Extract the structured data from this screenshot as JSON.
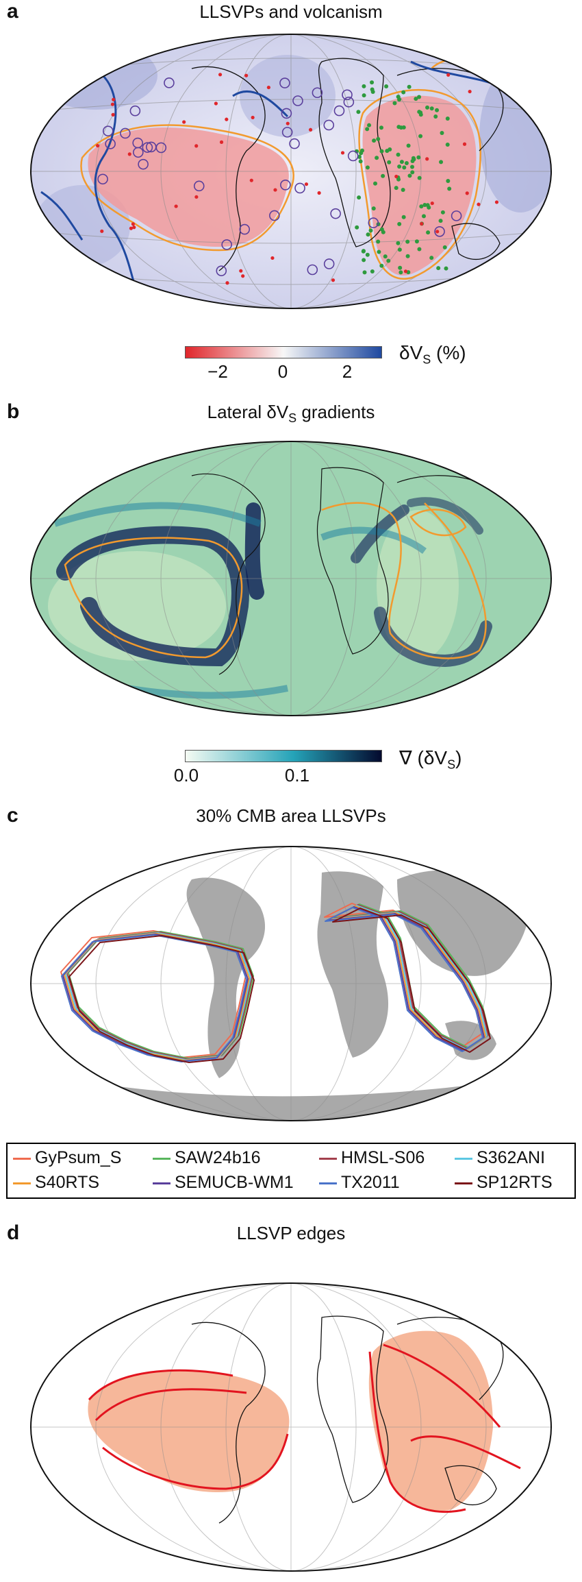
{
  "panels": {
    "a": {
      "letter": "a",
      "title": "LLSVPs and volcanism"
    },
    "b": {
      "letter": "b",
      "title": "Lateral δV",
      "title_sub": "S",
      "title_end": " gradients"
    },
    "c": {
      "letter": "c",
      "title": "30% CMB area LLSVPs"
    },
    "d": {
      "letter": "d",
      "title": "LLSVP edges"
    }
  },
  "colorbar_a": {
    "label": "δV",
    "label_sub": "S",
    "label_unit": " (%)",
    "ticks": [
      "−2",
      "0",
      "2"
    ],
    "colors": {
      "low": "#e0262b",
      "mid": "#f7f7f7",
      "high": "#1f49a0"
    }
  },
  "colorbar_b": {
    "label": "∇ (δV",
    "label_sub": "S",
    "label_end": ")",
    "ticks": [
      "0.0",
      "0.1"
    ],
    "colors": {
      "low": "#f5fbf3",
      "mid": "#25a3b8",
      "high": "#040a2e"
    }
  },
  "legend": {
    "items": [
      {
        "label": "GyPsum_S",
        "color": "#ef6b4f"
      },
      {
        "label": "SAW24b16",
        "color": "#59b65d"
      },
      {
        "label": "HMSL-S06",
        "color": "#a3404d"
      },
      {
        "label": "S362ANI",
        "color": "#5cc7e2"
      },
      {
        "label": "S40RTS",
        "color": "#f29a2e"
      },
      {
        "label": "SEMUCB-WM1",
        "color": "#5a3f9c"
      },
      {
        "label": "TX2011",
        "color": "#4a73c9"
      },
      {
        "label": "SP12RTS",
        "color": "#7b1519"
      }
    ]
  },
  "colors": {
    "llsvp_contour": "#f29a2e",
    "slab_lines": "#1f49a0",
    "hotspot_circles": "#5a3f9c",
    "kimberlite_points": "#2e9a3e",
    "lip_points": "#e0262b",
    "continents_gray": "#a9a9a9",
    "edge_fill": "#f6b79a",
    "edge_lines": "#e2141f"
  }
}
